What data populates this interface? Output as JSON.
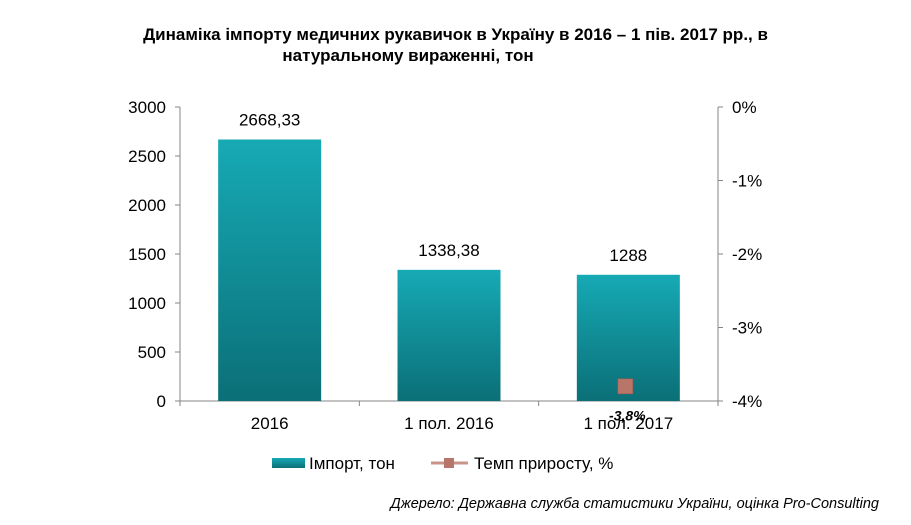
{
  "chart_data": {
    "type": "bar",
    "title_line1": "Динаміка імпорту медичних рукавичок в Україну в 2016 – 1 пів. 2017 рр., в",
    "title_line2": "натуральному вираженні, тон",
    "categories": [
      "2016",
      "1 пол. 2016",
      "1 пол. 2017"
    ],
    "series": [
      {
        "name": "Імпорт, тон",
        "type": "bar",
        "axis": "left",
        "values": [
          2668.33,
          1338.38,
          1288
        ],
        "labels": [
          "2668,33",
          "1338,38",
          "1288"
        ]
      },
      {
        "name": "Темп приросту, %",
        "type": "line",
        "axis": "right",
        "values": [
          null,
          null,
          -3.8
        ],
        "labels": [
          "",
          "",
          "-3,8%"
        ]
      }
    ],
    "y_left": {
      "min": 0,
      "max": 3000,
      "ticks": [
        "0",
        "500",
        "1000",
        "1500",
        "2000",
        "2500",
        "3000"
      ]
    },
    "y_right": {
      "min": -4,
      "max": 0,
      "ticks": [
        "-4%",
        "-3%",
        "-2%",
        "-1%",
        "0%"
      ]
    },
    "grid": false,
    "legend_position": "bottom",
    "colors": {
      "bar_top": "#16aab5",
      "bar_bottom": "#0b6f77",
      "marker": "#b8766a",
      "line": "#c8948a"
    }
  },
  "source_text": "Джерело: Державна служба статистики України, оцінка Pro-Consulting"
}
